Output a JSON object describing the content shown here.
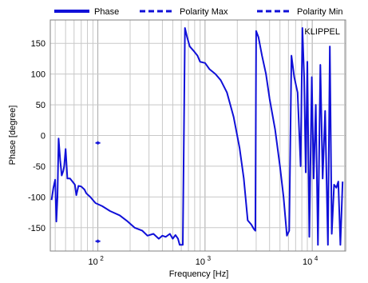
{
  "chart_data": {
    "type": "line",
    "xlabel": "Frequency [Hz]",
    "ylabel": "Phase [degree]",
    "watermark": "KLIPPEL",
    "x_scale": "log",
    "xlim": [
      36,
      20500
    ],
    "ylim": [
      -188,
      188
    ],
    "y_ticks": [
      150,
      100,
      50,
      0,
      -50,
      -100,
      -150
    ],
    "x_major_ticks": [
      {
        "value": 100,
        "base": "10",
        "exp": "2"
      },
      {
        "value": 1000,
        "base": "10",
        "exp": "3"
      },
      {
        "value": 10000,
        "base": "10",
        "exp": "4"
      }
    ],
    "grid": true,
    "legend_position": "top",
    "colors": {
      "line": "#1010d8",
      "grid": "#c8c8c8",
      "frame": "#808080",
      "watermark": "#2a2ad0"
    },
    "series": [
      {
        "name": "Phase",
        "style": "solid",
        "x": [
          37,
          38.5,
          40,
          41,
          42,
          43,
          44.5,
          46,
          47.5,
          48.5,
          50,
          52,
          55,
          58,
          61,
          63,
          66,
          70,
          75,
          78,
          85,
          95,
          110,
          130,
          160,
          190,
          220,
          260,
          290,
          330,
          370,
          400,
          430,
          470,
          500,
          530,
          560,
          580,
          620,
          650,
          680,
          720,
          780,
          850,
          900,
          1000,
          1100,
          1250,
          1400,
          1600,
          1850,
          2100,
          2300,
          2500,
          2700,
          2850,
          2950,
          3000,
          3150,
          3400,
          3700,
          4000,
          4500,
          5000,
          5400,
          5800,
          6100,
          6400,
          6800,
          7300,
          7800,
          8100,
          8400,
          8700,
          9000,
          9400,
          9900,
          10300,
          10800,
          11300,
          11900,
          12500,
          13200,
          14000,
          14600,
          15200,
          16000,
          16800,
          17500,
          18300,
          19200
        ],
        "y": [
          -105,
          -85,
          -72,
          -140,
          -100,
          -5,
          -40,
          -65,
          -58,
          -50,
          -22,
          -70,
          -70,
          -75,
          -80,
          -97,
          -82,
          -83,
          -88,
          -94,
          -100,
          -110,
          -115,
          -123,
          -130,
          -140,
          -150,
          -155,
          -163,
          -160,
          -168,
          -163,
          -165,
          -160,
          -168,
          -162,
          -168,
          -178,
          -178,
          175,
          160,
          145,
          138,
          130,
          120,
          118,
          108,
          100,
          90,
          70,
          30,
          -20,
          -70,
          -138,
          -145,
          -152,
          -155,
          170,
          160,
          130,
          100,
          60,
          10,
          -50,
          -100,
          -163,
          -155,
          130,
          95,
          70,
          -50,
          175,
          95,
          -60,
          120,
          -165,
          95,
          -70,
          50,
          -178,
          115,
          -70,
          40,
          -178,
          145,
          -160,
          -80,
          -85,
          -75,
          -178,
          -75
        ]
      },
      {
        "name": "Polarity Max",
        "style": "dashed",
        "x": [
          100
        ],
        "y": [
          -12
        ]
      },
      {
        "name": "Polarity Min",
        "style": "dashed",
        "x": [
          100
        ],
        "y": [
          -172
        ]
      }
    ]
  }
}
